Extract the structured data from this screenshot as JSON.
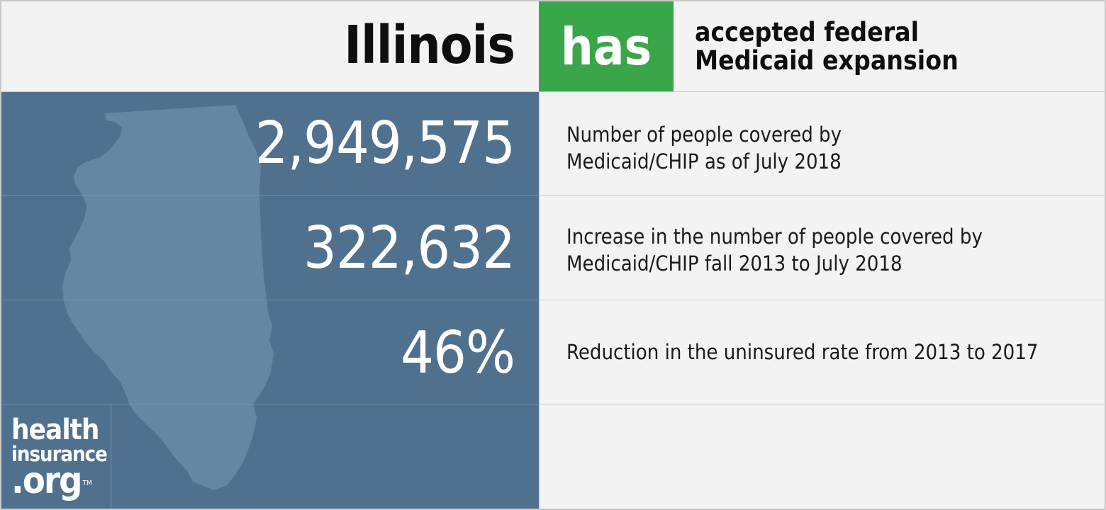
{
  "header": {
    "state": "Illinois",
    "status": "has",
    "status_text_line1": "accepted federal",
    "status_text_line2": "Medicaid expansion"
  },
  "stats": [
    {
      "value": "2,949,575",
      "desc_line1": "Number of people covered by",
      "desc_line2": "Medicaid/CHIP as of July 2018"
    },
    {
      "value": "322,632",
      "desc_line1": "Increase in the number of people covered by",
      "desc_line2": "Medicaid/CHIP fall 2013 to July 2018"
    },
    {
      "value": "46%",
      "desc_line1": "Reduction in the uninsured rate from 2013 to 2017",
      "desc_line2": ""
    }
  ],
  "logo": {
    "line1": "health",
    "line2": "insurance",
    "line3": ".org",
    "tm": "TM"
  },
  "colors": {
    "accent_green": "#3aa64a",
    "panel_blue": "#50718e",
    "map_fill": "#6587a2",
    "background": "#f3f3f3"
  },
  "icons": {
    "state_map": "illinois-state-silhouette"
  }
}
